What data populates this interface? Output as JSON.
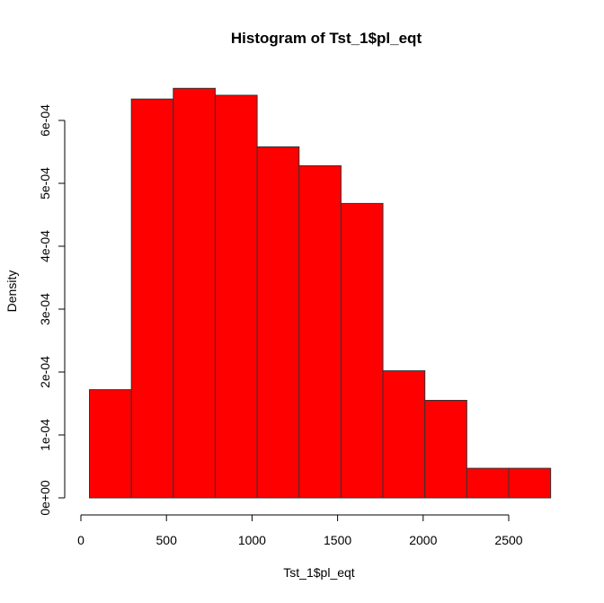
{
  "chart_data": {
    "type": "bar",
    "title": "Histogram of Tst_1$pl_eqt",
    "xlabel": "Tst_1$pl_eqt",
    "ylabel": "Density",
    "bar_color": "#ff0000",
    "bins": [
      {
        "x0": 50,
        "x1": 295,
        "density": 0.000172
      },
      {
        "x0": 295,
        "x1": 540,
        "density": 0.000634
      },
      {
        "x0": 540,
        "x1": 785,
        "density": 0.000651
      },
      {
        "x0": 785,
        "x1": 1030,
        "density": 0.00064
      },
      {
        "x0": 1030,
        "x1": 1275,
        "density": 0.000558
      },
      {
        "x0": 1275,
        "x1": 1520,
        "density": 0.000528
      },
      {
        "x0": 1520,
        "x1": 1765,
        "density": 0.000468
      },
      {
        "x0": 1765,
        "x1": 2010,
        "density": 0.000202
      },
      {
        "x0": 2010,
        "x1": 2255,
        "density": 0.000155
      },
      {
        "x0": 2255,
        "x1": 2500,
        "density": 4.7e-05
      },
      {
        "x0": 2500,
        "x1": 2745,
        "density": 4.7e-05
      }
    ],
    "x_ticks": [
      0,
      500,
      1000,
      1500,
      2000,
      2500
    ],
    "x_tick_labels": [
      "0",
      "500",
      "1000",
      "1500",
      "2000",
      "2500"
    ],
    "y_ticks": [
      0,
      0.0001,
      0.0002,
      0.0003,
      0.0004,
      0.0005,
      0.0006
    ],
    "y_tick_labels": [
      "0e+00",
      "1e-04",
      "2e-04",
      "3e-04",
      "4e-04",
      "5e-04",
      "6e-04"
    ],
    "xlim": [
      0,
      2745
    ],
    "ylim": [
      0,
      0.0006
    ],
    "grid": false,
    "legend": "none"
  }
}
